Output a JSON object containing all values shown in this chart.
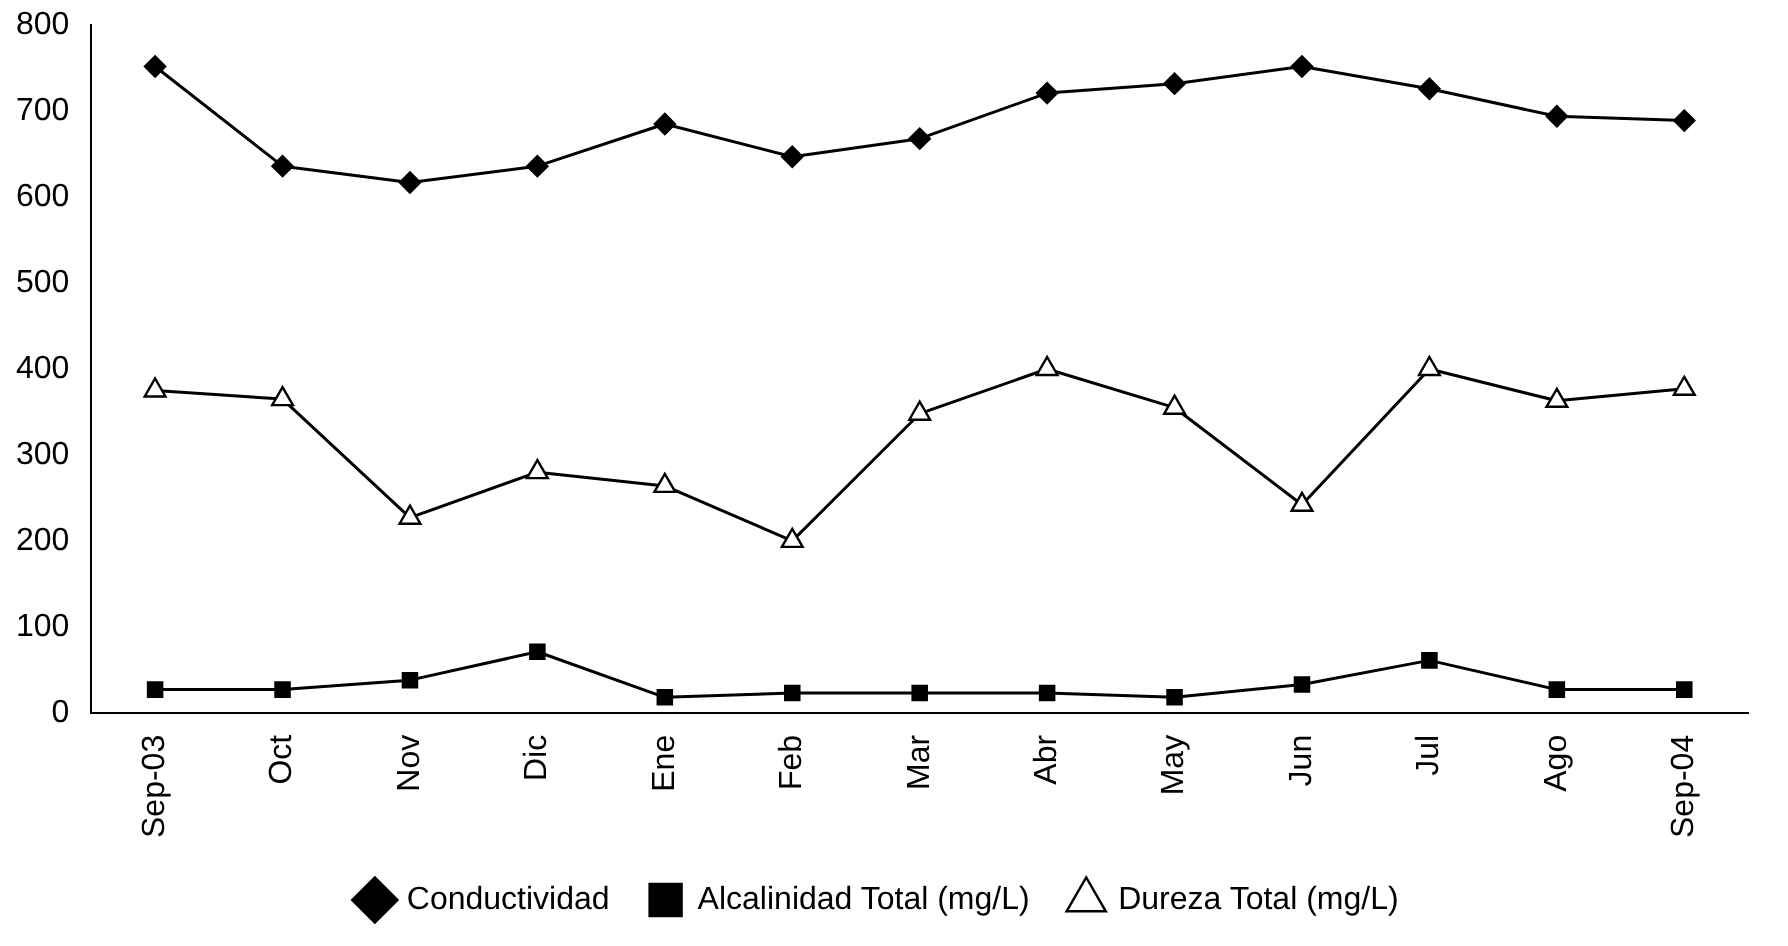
{
  "chart_data": {
    "type": "line",
    "categories": [
      "Sep-03",
      "Oct",
      "Nov",
      "Dic",
      "Ene",
      "Feb",
      "Mar",
      "Abr",
      "May",
      "Jun",
      "Jul",
      "Ago",
      "Sep-04"
    ],
    "series": [
      {
        "name": "Conductividad",
        "color": "#000000",
        "marker": "diamond",
        "values": [
          752,
          636,
          617,
          636,
          685,
          647,
          668,
          721,
          732,
          752,
          726,
          694,
          689
        ]
      },
      {
        "name": "Alcalinidad Total (mg/L)",
        "color": "#000000",
        "marker": "square",
        "values": [
          27,
          27,
          38,
          71,
          18,
          23,
          23,
          23,
          18,
          33,
          61,
          27,
          27
        ]
      },
      {
        "name": "Dureza Total (mg/L)",
        "color": "#000000",
        "marker": "triangle",
        "values": [
          375,
          365,
          227,
          280,
          264,
          200,
          348,
          400,
          355,
          242,
          400,
          363,
          377
        ]
      }
    ],
    "ylim": [
      0,
      800
    ],
    "yticks": [
      0,
      100,
      200,
      300,
      400,
      500,
      600,
      700,
      800
    ],
    "grid": false,
    "legend": "bottom",
    "line_style": "solid"
  }
}
